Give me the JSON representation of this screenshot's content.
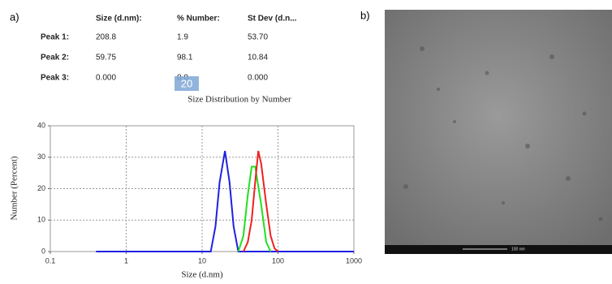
{
  "panel_a": {
    "label": "a)",
    "table": {
      "headers": [
        "Size (d.nm):",
        "% Number:",
        "St Dev (d.n..."
      ],
      "rows": [
        [
          "Peak 1:",
          "208.8",
          "1.9",
          "53.70"
        ],
        [
          "Peak 2:",
          "59.75",
          "98.1",
          "10.84"
        ],
        [
          "Peak 3:",
          "0.000",
          "0.0",
          "0.000"
        ]
      ]
    },
    "overlay": "20"
  },
  "chart_data": {
    "type": "line",
    "title": "Size Distribution by Number",
    "x_label": "Size (d.nm)",
    "y_label": "Number (Percent)",
    "xscale": "log",
    "xlim": [
      0.1,
      1000
    ],
    "xticks": [
      0.1,
      1,
      10,
      100,
      1000
    ],
    "ylim": [
      0,
      40
    ],
    "yticks": [
      0,
      10,
      20,
      30,
      40
    ],
    "grid": true,
    "series": [
      {
        "color": "#2020e0",
        "x": [
          0.4,
          13,
          15,
          17,
          20,
          23,
          26,
          30,
          1000
        ],
        "values": [
          0,
          0,
          8,
          22,
          32,
          22,
          8,
          0,
          0
        ]
      },
      {
        "color": "#20e020",
        "x": [
          30,
          35,
          40,
          45,
          50,
          60,
          70,
          80
        ],
        "values": [
          0,
          5,
          18,
          27,
          27,
          15,
          3,
          0
        ]
      },
      {
        "color": "#f02020",
        "x": [
          35,
          40,
          45,
          50,
          55,
          60,
          70,
          80,
          90,
          100
        ],
        "values": [
          0,
          3,
          10,
          22,
          32,
          28,
          15,
          5,
          1,
          0
        ]
      }
    ]
  },
  "panel_b": {
    "label": "b)",
    "scale_bar": "100 nm"
  }
}
